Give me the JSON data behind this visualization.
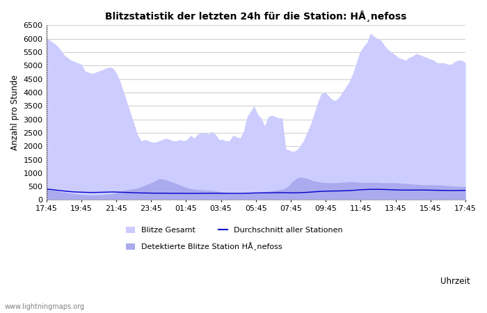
{
  "title": "Blitzstatistik der letzten 24h für die Station: HÅ¸nefoss",
  "xlabel": "Uhrzeit",
  "ylabel": "Anzahl pro Stunde",
  "ylim": [
    0,
    6500
  ],
  "yticks": [
    0,
    500,
    1000,
    1500,
    2000,
    2500,
    3000,
    3500,
    4000,
    4500,
    5000,
    5500,
    6000,
    6500
  ],
  "xtick_labels": [
    "17:45",
    "19:45",
    "21:45",
    "23:45",
    "01:45",
    "03:45",
    "05:45",
    "07:45",
    "09:45",
    "11:45",
    "13:45",
    "15:45",
    "17:45"
  ],
  "grid_color": "#cccccc",
  "color_gesamt": "#ccccff",
  "color_detektiert": "#aaaaee",
  "color_avg": "#0000cc",
  "legend_label_gesamt": "Blitze Gesamt",
  "legend_label_avg": "Durchschnitt aller Stationen",
  "legend_label_detekt": "Detektierte Blitze Station HÅ¸nefoss",
  "blitze_gesamt": [
    6050,
    5950,
    5850,
    5750,
    5600,
    5400,
    5300,
    5200,
    5150,
    5100,
    5050,
    4800,
    4750,
    4700,
    4750,
    4800,
    4850,
    4900,
    4950,
    4900,
    4700,
    4400,
    4000,
    3600,
    3200,
    2800,
    2400,
    2200,
    2250,
    2200,
    2150,
    2150,
    2200,
    2250,
    2300,
    2250,
    2200,
    2200,
    2250,
    2200,
    2250,
    2400,
    2300,
    2450,
    2500,
    2500,
    2450,
    2550,
    2450,
    2250,
    2250,
    2200,
    2200,
    2400,
    2350,
    2300,
    2550,
    3100,
    3300,
    3500,
    3200,
    3050,
    2750,
    3100,
    3150,
    3100,
    3050,
    3050,
    1900,
    1850,
    1800,
    1850,
    2000,
    2200,
    2500,
    2800,
    3200,
    3600,
    3950,
    4000,
    3900,
    3750,
    3700,
    3800,
    4000,
    4200,
    4400,
    4700,
    5100,
    5500,
    5700,
    5850,
    6200,
    6100,
    6000,
    5950,
    5750,
    5600,
    5500,
    5400,
    5300,
    5250,
    5200,
    5300,
    5350,
    5450,
    5400,
    5350,
    5300,
    5250,
    5200,
    5100,
    5100,
    5100,
    5050,
    5050,
    5150,
    5200,
    5200,
    5100
  ],
  "detektiert": [
    400,
    380,
    360,
    340,
    310,
    290,
    270,
    250,
    230,
    210,
    200,
    190,
    185,
    180,
    185,
    190,
    200,
    210,
    220,
    230,
    270,
    310,
    350,
    380,
    400,
    420,
    450,
    500,
    550,
    600,
    650,
    720,
    790,
    780,
    750,
    700,
    650,
    600,
    550,
    500,
    450,
    420,
    400,
    390,
    380,
    370,
    360,
    350,
    340,
    310,
    290,
    270,
    255,
    250,
    250,
    250,
    250,
    260,
    270,
    280,
    290,
    300,
    310,
    320,
    340,
    360,
    380,
    400,
    450,
    550,
    700,
    800,
    850,
    830,
    800,
    750,
    700,
    680,
    660,
    650,
    640,
    640,
    640,
    650,
    660,
    670,
    680,
    680,
    670,
    660,
    650,
    650,
    650,
    660,
    650,
    640,
    640,
    640,
    640,
    640,
    630,
    620,
    610,
    600,
    590,
    580,
    570,
    560,
    560,
    560,
    560,
    560,
    550,
    540,
    530,
    520,
    510,
    500,
    500,
    500
  ],
  "avg_line": [
    410,
    395,
    380,
    365,
    348,
    335,
    320,
    310,
    300,
    295,
    290,
    285,
    282,
    280,
    282,
    285,
    288,
    292,
    296,
    298,
    295,
    290,
    285,
    280,
    275,
    270,
    265,
    262,
    260,
    258,
    255,
    253,
    252,
    252,
    252,
    250,
    248,
    247,
    247,
    246,
    245,
    245,
    245,
    245,
    246,
    247,
    248,
    250,
    250,
    249,
    248,
    247,
    246,
    246,
    246,
    246,
    247,
    250,
    255,
    260,
    262,
    264,
    265,
    266,
    268,
    270,
    272,
    274,
    270,
    268,
    265,
    268,
    272,
    278,
    285,
    293,
    302,
    312,
    320,
    326,
    330,
    332,
    334,
    336,
    340,
    344,
    350,
    358,
    368,
    378,
    385,
    390,
    395,
    396,
    396,
    394,
    390,
    385,
    380,
    376,
    372,
    370,
    368,
    368,
    368,
    370,
    370,
    370,
    368,
    366,
    363,
    360,
    358,
    355,
    353,
    352,
    352,
    353,
    355,
    357
  ]
}
